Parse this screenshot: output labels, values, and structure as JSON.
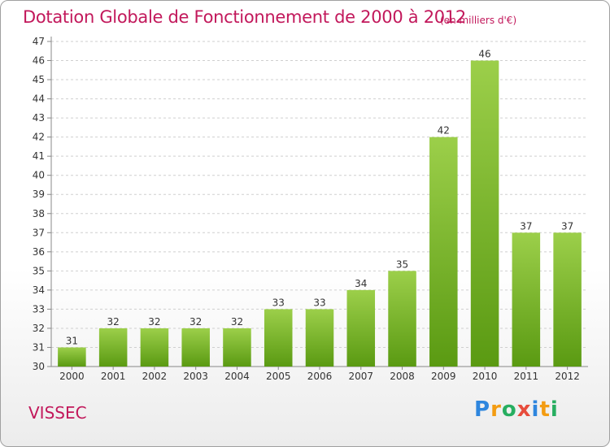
{
  "header": {
    "title": "Dotation Globale de Fonctionnement de 2000 à 2012",
    "subtitle": "(en milliers d'€)"
  },
  "footer": {
    "commune": "VISSEC",
    "logo": {
      "letters": [
        {
          "char": "P",
          "color": "#2e86de"
        },
        {
          "char": "r",
          "color": "#f39c12"
        },
        {
          "char": "o",
          "color": "#27ae60"
        },
        {
          "char": "x",
          "color": "#e74c3c"
        },
        {
          "char": "i",
          "color": "#2e86de"
        },
        {
          "char": "t",
          "color": "#f39c12"
        },
        {
          "char": "i",
          "color": "#27ae60"
        }
      ]
    }
  },
  "chart_data": {
    "type": "bar",
    "title": "Dotation Globale de Fonctionnement de 2000 à 2012",
    "categories": [
      "2000",
      "2001",
      "2002",
      "2003",
      "2004",
      "2005",
      "2006",
      "2007",
      "2008",
      "2009",
      "2010",
      "2011",
      "2012"
    ],
    "values": [
      31,
      32,
      32,
      32,
      32,
      33,
      33,
      34,
      35,
      42,
      46,
      37,
      37
    ],
    "ylim": [
      30,
      47
    ],
    "yticks": [
      30,
      31,
      32,
      33,
      34,
      35,
      36,
      37,
      38,
      39,
      40,
      41,
      42,
      43,
      44,
      45,
      46,
      47
    ],
    "grid": true,
    "bar_color_top": "#9ccf4a",
    "bar_color_bottom": "#5a9a12",
    "text_color": "#333333",
    "accent_color": "#c2185b"
  }
}
